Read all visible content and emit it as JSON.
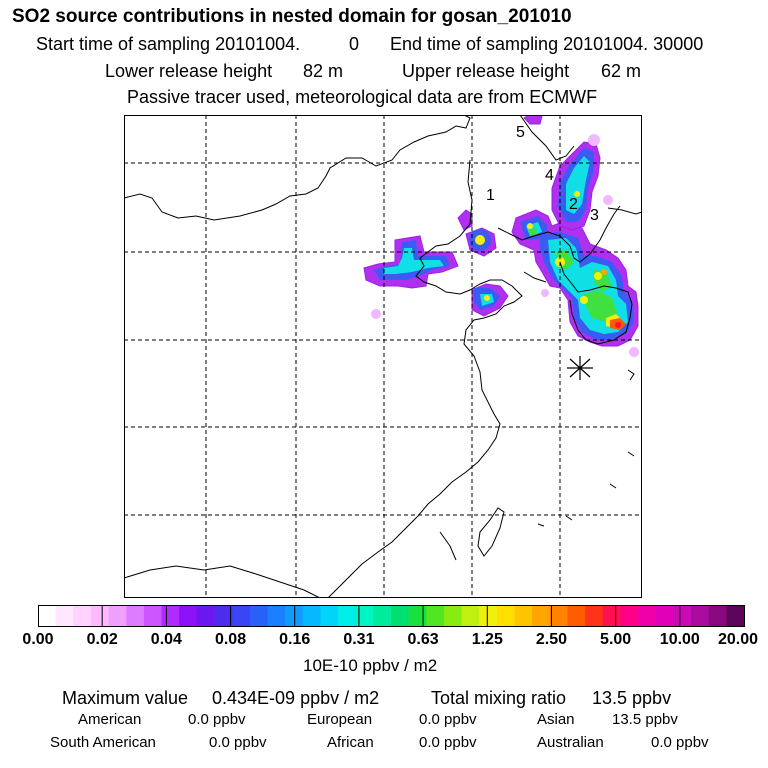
{
  "header": {
    "title": "SO2 source contributions in nested domain for gosan_201010",
    "start_label": "Start time of sampling 20101004.",
    "start_value": "0",
    "end_label": "End time of sampling 20101004. 30000",
    "lower_label": "Lower release height",
    "lower_value": "82 m",
    "upper_label": "Upper release height",
    "upper_value": "62 m",
    "note": "Passive tracer used, meteorological data are from ECMWF"
  },
  "map": {
    "region_labels": [
      "1",
      "2",
      "3",
      "4",
      "5"
    ],
    "receptor_symbol": "*"
  },
  "colorbar": {
    "colors": [
      "#ffffff",
      "#ffe8ff",
      "#ffd2ff",
      "#ffbaff",
      "#f0a0ff",
      "#dd7cff",
      "#cc55ff",
      "#b02bff",
      "#8c10f8",
      "#6a18f0",
      "#4d2cf0",
      "#3a44f5",
      "#2a60f8",
      "#1a80ff",
      "#109cff",
      "#08b8ff",
      "#00d4f8",
      "#00eee8",
      "#00f4c4",
      "#00ec9c",
      "#00e070",
      "#18e040",
      "#50e620",
      "#88ec10",
      "#c0f010",
      "#f0f010",
      "#ffe000",
      "#ffc400",
      "#ffa400",
      "#ff8200",
      "#ff5c00",
      "#ff3418",
      "#ff1050",
      "#ff0088",
      "#f000a8",
      "#e000b8",
      "#c80cb4",
      "#a80c9c",
      "#880880",
      "#5c0458"
    ],
    "tick_labels": [
      "0.00",
      "0.02",
      "0.04",
      "0.08",
      "0.16",
      "0.31",
      "0.63",
      "1.25",
      "2.50",
      "5.00",
      "10.00",
      "20.00"
    ],
    "unit": "10E-10 ppbv / m2"
  },
  "footer": {
    "max_label": "Maximum value",
    "max_value": "0.434E-09 ppbv / m2",
    "total_label": "Total mixing ratio",
    "total_value": "13.5 ppbv",
    "american_label": "American",
    "american_value": "0.0 ppbv",
    "european_label": "European",
    "european_value": "0.0 ppbv",
    "asian_label": "Asian",
    "asian_value": "13.5 ppbv",
    "south_american_label": "South American",
    "south_american_value": "0.0 ppbv",
    "african_label": "African",
    "african_value": "0.0 ppbv",
    "australian_label": "Australian",
    "australian_value": "0.0 ppbv"
  }
}
